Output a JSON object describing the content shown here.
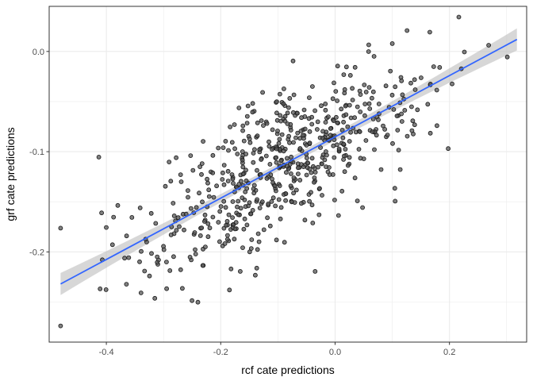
{
  "chart_data": {
    "type": "scatter",
    "title": "",
    "xlabel": "rcf cate predictions",
    "ylabel": "grf cate predictions",
    "xlim": [
      -0.5,
      0.335
    ],
    "ylim": [
      -0.29,
      0.045
    ],
    "x_ticks": [
      -0.4,
      -0.2,
      0.0,
      0.2
    ],
    "y_ticks": [
      -0.2,
      -0.1,
      0.0
    ],
    "x_tick_labels": [
      "-0.4",
      "-0.2",
      "0.0",
      "0.2"
    ],
    "y_tick_labels": [
      "-0.2",
      "-0.1",
      "0.0"
    ],
    "grid": true,
    "legend": "none",
    "colors": {
      "point_fill": "#555555",
      "point_stroke": "#1a1a1a",
      "fit_line": "#3366ff",
      "ribbon": "#bdbdbd",
      "grid": "#ebebeb",
      "panel_border": "#333333"
    },
    "fit": {
      "method": "linear",
      "x": [
        -0.48,
        0.318
      ],
      "y": [
        -0.232,
        0.012
      ],
      "ci_halfwidth_ends": 0.011,
      "ci_halfwidth_center": 0.0035
    },
    "points_seed": 20240511,
    "points_count": 600,
    "points_noise_sd": 0.037
  }
}
